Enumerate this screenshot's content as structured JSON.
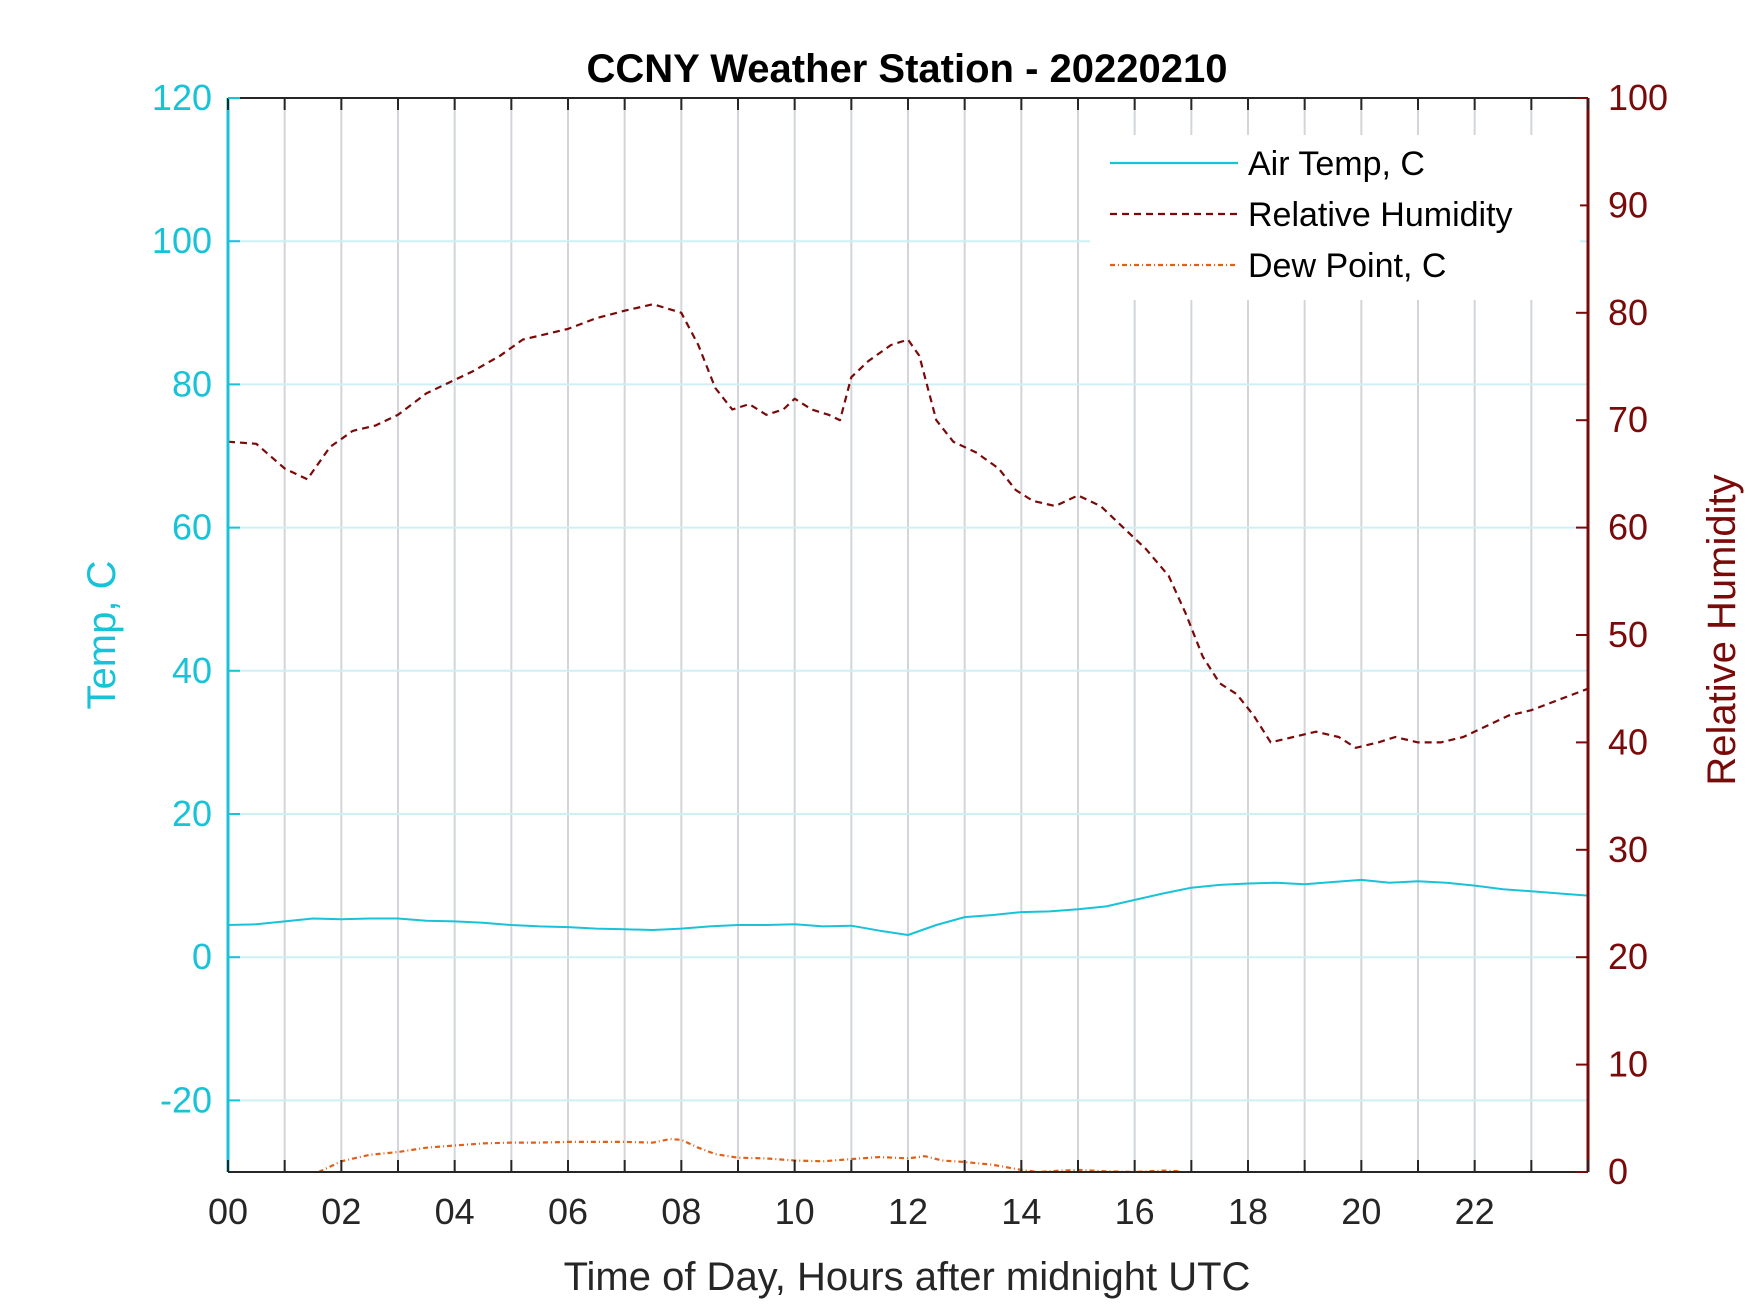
{
  "chart_data": {
    "type": "line",
    "title": "CCNY Weather Station - 20220210",
    "xlabel": "Time of Day, Hours after midnight UTC",
    "ylabel_left": "Temp, C",
    "ylabel_right": "Relative Humidity",
    "xlim": [
      0,
      24
    ],
    "ylim_left": [
      -30,
      120
    ],
    "ylim_right": [
      0,
      100
    ],
    "x_ticks": [
      0,
      2,
      4,
      6,
      8,
      10,
      12,
      14,
      16,
      18,
      20,
      22
    ],
    "x_tick_labels": [
      "00",
      "02",
      "04",
      "06",
      "08",
      "10",
      "12",
      "14",
      "16",
      "18",
      "20",
      "22"
    ],
    "y_ticks_left": [
      -20,
      0,
      20,
      40,
      60,
      80,
      100,
      120
    ],
    "y_ticks_right": [
      0,
      10,
      20,
      30,
      40,
      50,
      60,
      70,
      80,
      90,
      100
    ],
    "grid": true,
    "legend_position": "top-right",
    "colors": {
      "left_axis": "#18C3D8",
      "right_axis": "#7A0A0A",
      "air_temp": "#18C3D8",
      "humidity": "#7A0A0A",
      "dew_point": "#E0601A"
    },
    "series": [
      {
        "name": "Air Temp, C",
        "axis": "left",
        "style": "solid",
        "x": [
          0,
          0.5,
          1,
          1.5,
          2,
          2.5,
          3,
          3.5,
          4,
          4.5,
          5,
          5.5,
          6,
          6.5,
          7,
          7.5,
          8,
          8.5,
          9,
          9.5,
          10,
          10.5,
          11,
          11.5,
          12,
          12.5,
          13,
          13.5,
          14,
          14.5,
          15,
          15.5,
          16,
          16.5,
          17,
          17.5,
          18,
          18.5,
          19,
          19.5,
          20,
          20.5,
          21,
          21.5,
          22,
          22.5,
          23,
          23.5,
          24
        ],
        "y": [
          4.5,
          4.6,
          5.0,
          5.4,
          5.3,
          5.4,
          5.4,
          5.1,
          5.0,
          4.8,
          4.5,
          4.3,
          4.2,
          4.0,
          3.9,
          3.8,
          4.0,
          4.3,
          4.5,
          4.5,
          4.6,
          4.3,
          4.4,
          3.7,
          3.1,
          4.5,
          5.6,
          5.9,
          6.3,
          6.4,
          6.7,
          7.1,
          8.0,
          8.9,
          9.7,
          10.1,
          10.3,
          10.4,
          10.2,
          10.5,
          10.8,
          10.4,
          10.6,
          10.4,
          10.0,
          9.5,
          9.2,
          8.9,
          8.6
        ]
      },
      {
        "name": "Relative Humidity",
        "axis": "right",
        "style": "dashed",
        "x": [
          0,
          0.5,
          1,
          1.4,
          1.8,
          2.2,
          2.6,
          3,
          3.5,
          3.9,
          4.3,
          4.8,
          5.2,
          5.6,
          6,
          6.5,
          7,
          7.5,
          8,
          8.3,
          8.6,
          8.9,
          9.2,
          9.5,
          9.8,
          10,
          10.3,
          10.6,
          10.8,
          11,
          11.3,
          11.7,
          12,
          12.2,
          12.5,
          12.8,
          13.2,
          13.6,
          13.9,
          14.2,
          14.6,
          15,
          15.4,
          15.8,
          16.2,
          16.6,
          16.9,
          17.2,
          17.5,
          17.8,
          18.1,
          18.4,
          18.8,
          19.2,
          19.6,
          19.9,
          20.3,
          20.6,
          21,
          21.4,
          21.8,
          22.2,
          22.6,
          23,
          23.5,
          24
        ],
        "y": [
          68,
          67.8,
          65.5,
          64.5,
          67.5,
          69,
          69.5,
          70.5,
          72.5,
          73.5,
          74.5,
          76,
          77.5,
          78,
          78.5,
          79.5,
          80.2,
          80.8,
          80,
          77,
          73,
          71,
          71.5,
          70.5,
          71,
          72,
          71,
          70.5,
          70,
          74,
          75.5,
          77,
          77.5,
          76,
          70,
          68,
          67,
          65.5,
          63.5,
          62.5,
          62,
          63,
          62,
          60,
          58,
          55.5,
          52,
          48,
          45.5,
          44.5,
          42.5,
          40,
          40.5,
          41,
          40.5,
          39.5,
          40,
          40.5,
          40,
          40,
          40.5,
          41.5,
          42.5,
          43,
          44,
          45
        ]
      },
      {
        "name": "Dew Point, C",
        "axis": "left",
        "style": "dash-dot",
        "x": [
          1.6,
          2,
          2.5,
          3,
          3.5,
          4,
          4.5,
          5,
          5.5,
          6,
          6.5,
          7,
          7.5,
          7.8,
          8,
          8.3,
          8.6,
          9,
          9.5,
          10,
          10.5,
          11,
          11.5,
          12,
          12.3,
          12.6,
          13,
          13.5,
          14,
          14.3,
          14.7,
          15,
          15.5,
          16,
          16.5,
          16.8
        ],
        "y": [
          -30,
          -28.5,
          -27.6,
          -27.2,
          -26.6,
          -26.3,
          -26.0,
          -25.9,
          -25.9,
          -25.8,
          -25.8,
          -25.8,
          -25.9,
          -25.4,
          -25.5,
          -26.6,
          -27.5,
          -28.0,
          -28.1,
          -28.4,
          -28.5,
          -28.2,
          -27.9,
          -28.1,
          -27.8,
          -28.4,
          -28.6,
          -29.0,
          -29.7,
          -30,
          -29.8,
          -29.7,
          -29.9,
          -30,
          -29.8,
          -29.9
        ]
      }
    ]
  }
}
